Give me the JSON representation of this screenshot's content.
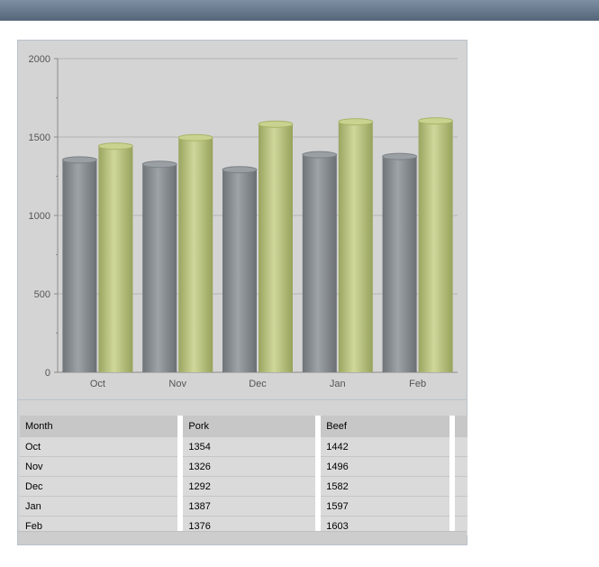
{
  "chart_data": {
    "type": "bar",
    "categories": [
      "Oct",
      "Nov",
      "Dec",
      "Jan",
      "Feb"
    ],
    "series": [
      {
        "name": "Pork",
        "values": [
          1354,
          1326,
          1292,
          1387,
          1376
        ],
        "color": "#8a8f94"
      },
      {
        "name": "Beef",
        "values": [
          1442,
          1496,
          1582,
          1597,
          1603
        ],
        "color": "#b7c27e"
      }
    ],
    "title": "",
    "xlabel": "",
    "ylabel": "",
    "ylim": [
      0,
      2000
    ],
    "yticks": [
      0,
      500,
      1000,
      1500,
      2000
    ],
    "grid": true,
    "legend": "none"
  },
  "table": {
    "headers": [
      "Month",
      "Pork",
      "Beef"
    ],
    "rows": [
      [
        "Oct",
        "1354",
        "1442"
      ],
      [
        "Nov",
        "1326",
        "1496"
      ],
      [
        "Dec",
        "1292",
        "1582"
      ],
      [
        "Jan",
        "1387",
        "1597"
      ],
      [
        "Feb",
        "1376",
        "1603"
      ]
    ]
  }
}
